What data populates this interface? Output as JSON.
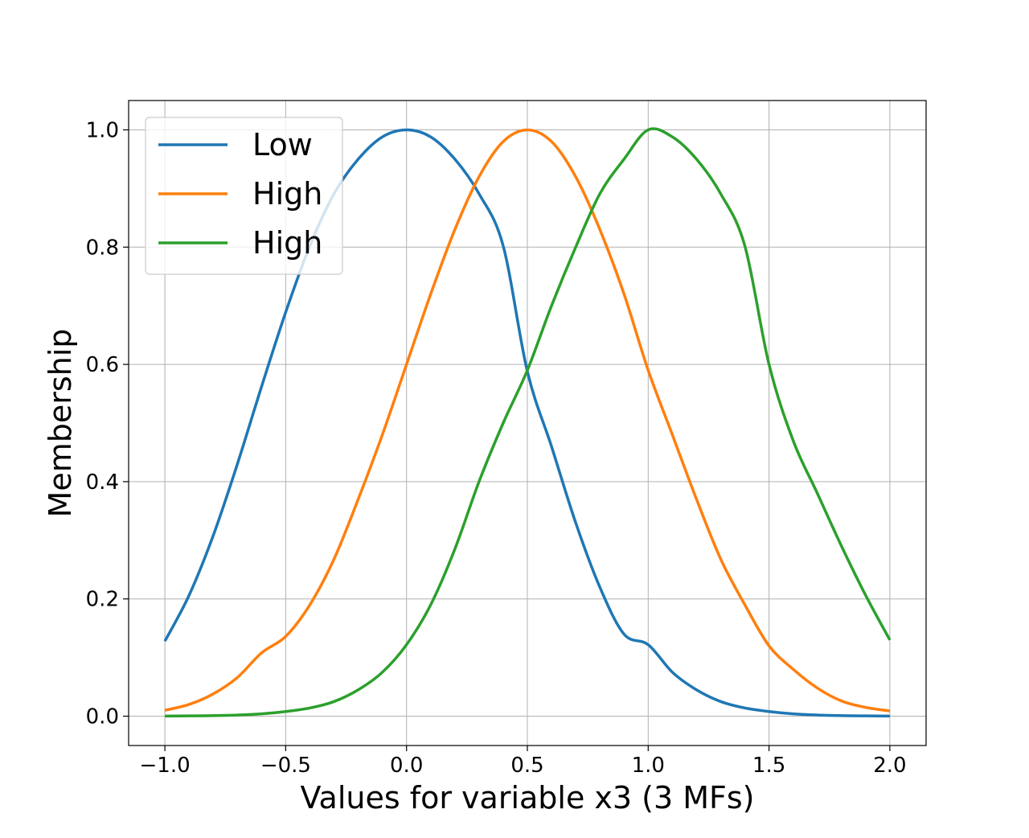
{
  "chart_data": {
    "type": "line",
    "title": "",
    "xlabel": "Values for variable x3 (3 MFs)",
    "ylabel": "Membership",
    "xlim": [
      -1.15,
      2.15
    ],
    "ylim": [
      -0.05,
      1.05
    ],
    "grid": true,
    "legend_position": "top-left",
    "x_ticks": [
      -1.0,
      -0.5,
      0.0,
      0.5,
      1.0,
      1.5,
      2.0
    ],
    "x_tick_labels": [
      "−1.0",
      "−0.5",
      "0.0",
      "0.5",
      "1.0",
      "1.5",
      "2.0"
    ],
    "y_ticks": [
      0.0,
      0.2,
      0.4,
      0.6,
      0.8,
      1.0
    ],
    "y_tick_labels": [
      "0.0",
      "0.2",
      "0.4",
      "0.6",
      "0.8",
      "1.0"
    ],
    "x": [
      -1.0,
      -0.9,
      -0.8,
      -0.7,
      -0.6,
      -0.5,
      -0.4,
      -0.3,
      -0.2,
      -0.1,
      0.0,
      0.1,
      0.2,
      0.3,
      0.4,
      0.5,
      0.6,
      0.7,
      0.8,
      0.9,
      1.0,
      1.1,
      1.2,
      1.3,
      1.4,
      1.5,
      1.6,
      1.7,
      1.8,
      1.9,
      2.0
    ],
    "series": [
      {
        "name": "Low",
        "color": "#1f77b4",
        "values": [
          0.128,
          0.206,
          0.308,
          0.43,
          0.562,
          0.689,
          0.802,
          0.891,
          0.95,
          0.988,
          1.0,
          0.988,
          0.95,
          0.891,
          0.802,
          0.588,
          0.46,
          0.33,
          0.22,
          0.14,
          0.122,
          0.075,
          0.045,
          0.025,
          0.014,
          0.008,
          0.004,
          0.002,
          0.001,
          0.0005,
          0.0002
        ]
      },
      {
        "name": "High",
        "color": "#ff7f0e",
        "values": [
          0.01,
          0.02,
          0.038,
          0.066,
          0.108,
          0.136,
          0.19,
          0.268,
          0.37,
          0.48,
          0.6,
          0.72,
          0.83,
          0.92,
          0.98,
          1.0,
          0.98,
          0.92,
          0.83,
          0.72,
          0.59,
          0.48,
          0.37,
          0.268,
          0.19,
          0.12,
          0.08,
          0.048,
          0.026,
          0.015,
          0.009
        ]
      },
      {
        "name": "High",
        "color": "#2ca02c",
        "values": [
          0.0002,
          0.0005,
          0.001,
          0.002,
          0.004,
          0.008,
          0.014,
          0.025,
          0.045,
          0.075,
          0.122,
          0.19,
          0.285,
          0.4,
          0.5,
          0.59,
          0.7,
          0.8,
          0.891,
          0.95,
          1.0,
          0.988,
          0.95,
          0.891,
          0.802,
          0.6,
          0.47,
          0.38,
          0.29,
          0.206,
          0.13
        ]
      }
    ]
  }
}
